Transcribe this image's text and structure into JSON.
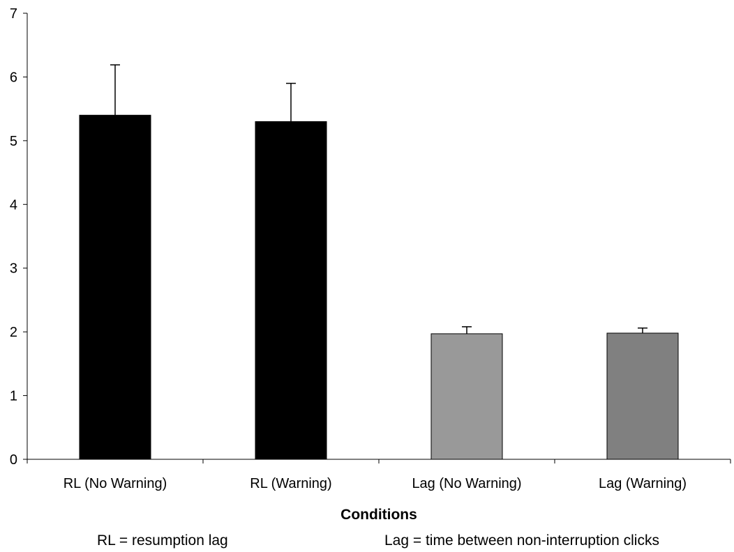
{
  "chart_data": {
    "type": "bar",
    "title": "",
    "xlabel": "Conditions",
    "ylabel": "",
    "categories": [
      "RL (No Warning)",
      "RL (Warning)",
      "Lag (No Warning)",
      "Lag (Warning)"
    ],
    "values": [
      5.4,
      5.3,
      1.97,
      1.98
    ],
    "error_upper": [
      6.19,
      5.9,
      2.08,
      2.06
    ],
    "colors": [
      "#000000",
      "#000000",
      "#999999",
      "#808080"
    ],
    "ylim": [
      0,
      7
    ],
    "yticks": [
      0,
      1,
      2,
      3,
      4,
      5,
      6,
      7
    ],
    "grid": false,
    "legend": "none"
  },
  "notes": {
    "left": "RL = resumption lag",
    "right": "Lag = time between non-interruption clicks"
  }
}
